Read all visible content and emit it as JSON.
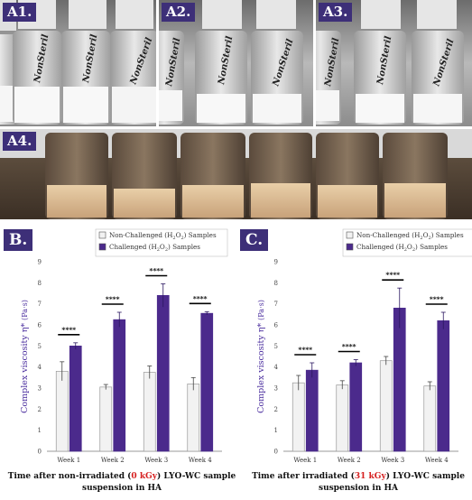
{
  "photos": [
    {
      "label": "A1.",
      "vial_text": "NonSteril",
      "content": "white"
    },
    {
      "label": "A2.",
      "vial_text": "NonSteril",
      "content": "white"
    },
    {
      "label": "A3.",
      "vial_text": "NonSteril",
      "content": "white"
    },
    {
      "label": "A4.",
      "content": "brown"
    }
  ],
  "colors": {
    "unchallenged": "#f2f2f2",
    "challenged": "#4b2a8c",
    "accent": "#4a2d9e",
    "dose": "#d62020",
    "tag": "#3d2f78"
  },
  "chart_data": [
    {
      "panel": "B.",
      "type": "bar",
      "categories": [
        "Week 1",
        "Week 2",
        "Week 3",
        "Week 4"
      ],
      "series": [
        {
          "name_pre": "Non-Challenged (H",
          "name_sub": "2",
          "name_mid": "O",
          "name_sub2": "2",
          "name_post": ") Samples",
          "values": [
            3.8,
            3.05,
            3.75,
            3.2
          ],
          "errors": [
            0.45,
            0.12,
            0.3,
            0.3
          ]
        },
        {
          "name_pre": "Challenged (H",
          "name_sub": "2",
          "name_mid": "O",
          "name_sub2": "2",
          "name_post": ") Samples",
          "values": [
            5.0,
            6.25,
            7.4,
            6.55
          ],
          "errors": [
            0.15,
            0.35,
            0.55,
            0.08
          ]
        }
      ],
      "significance": [
        "****",
        "****",
        "****",
        "****"
      ],
      "ylabel_main": "Complex viscosity η*",
      "ylabel_unit": "(Pa·s)",
      "ylim": [
        0,
        9
      ],
      "yticks": [
        "0",
        "1",
        "2",
        "3",
        "4",
        "5",
        "6",
        "7",
        "8",
        "9"
      ],
      "xlabel_pre": "Time after non-irradiated (",
      "xlabel_dose": "0 kGy",
      "xlabel_post": ") LYO-WC sample",
      "xlabel_line2": "suspension in HA",
      "legend_position": "top-right"
    },
    {
      "panel": "C.",
      "type": "bar",
      "categories": [
        "Week 1",
        "Week 2",
        "Week 3",
        "Week 4"
      ],
      "series": [
        {
          "name_pre": "Non-Challenged (H",
          "name_sub": "2",
          "name_mid": "O",
          "name_sub2": "2",
          "name_post": ") Samples",
          "values": [
            3.25,
            3.15,
            4.3,
            3.1
          ],
          "errors": [
            0.35,
            0.2,
            0.2,
            0.2
          ]
        },
        {
          "name_pre": "Challenged (H",
          "name_sub": "2",
          "name_mid": "O",
          "name_sub2": "2",
          "name_post": ") Samples",
          "values": [
            3.85,
            4.2,
            6.8,
            6.2
          ],
          "errors": [
            0.35,
            0.15,
            0.95,
            0.4
          ]
        }
      ],
      "significance": [
        "****",
        "****",
        "****",
        "****"
      ],
      "ylabel_main": "Complex viscosity η*",
      "ylabel_unit": "(Pa·s)",
      "ylim": [
        0,
        9
      ],
      "yticks": [
        "0",
        "1",
        "2",
        "3",
        "4",
        "5",
        "6",
        "7",
        "8",
        "9"
      ],
      "xlabel_pre": "Time after irradiated (",
      "xlabel_dose": "31 kGy",
      "xlabel_post": ") LYO-WC sample",
      "xlabel_line2": "suspension in HA",
      "legend_position": "top-right"
    }
  ]
}
